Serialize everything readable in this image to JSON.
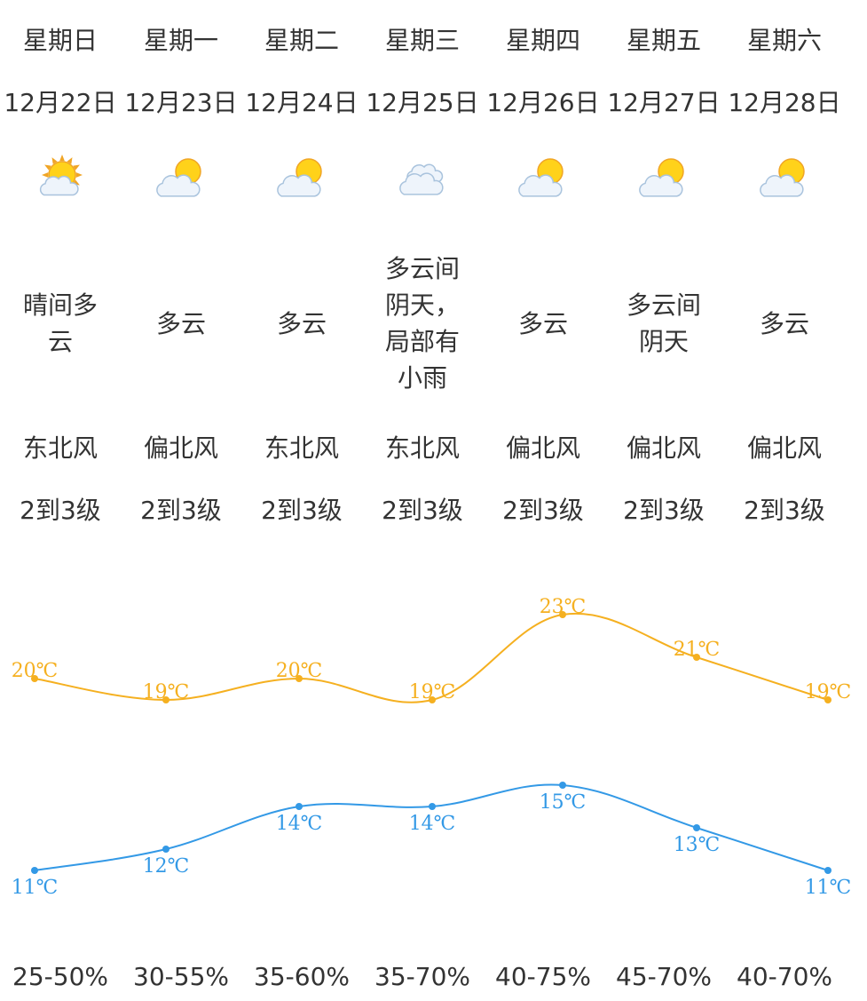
{
  "days": [
    {
      "weekday": "星期日",
      "date": "12月22日",
      "icon": "sunny-cloudy-icon",
      "desc": "晴间多云",
      "wind_dir": "东北风",
      "wind_level": "2到3级",
      "humidity": "25-50%"
    },
    {
      "weekday": "星期一",
      "date": "12月23日",
      "icon": "partly-cloudy-icon",
      "desc": "多云",
      "wind_dir": "偏北风",
      "wind_level": "2到3级",
      "humidity": "30-55%"
    },
    {
      "weekday": "星期二",
      "date": "12月24日",
      "icon": "partly-cloudy-icon",
      "desc": "多云",
      "wind_dir": "东北风",
      "wind_level": "2到3级",
      "humidity": "35-60%"
    },
    {
      "weekday": "星期三",
      "date": "12月25日",
      "icon": "overcast-cloud-icon",
      "desc": "多云间阴天，局部有小雨",
      "wind_dir": "东北风",
      "wind_level": "2到3级",
      "humidity": "35-70%"
    },
    {
      "weekday": "星期四",
      "date": "12月26日",
      "icon": "partly-cloudy-icon",
      "desc": "多云",
      "wind_dir": "偏北风",
      "wind_level": "2到3级",
      "humidity": "40-75%"
    },
    {
      "weekday": "星期五",
      "date": "12月27日",
      "icon": "partly-cloudy-icon",
      "desc": "多云间阴天",
      "wind_dir": "偏北风",
      "wind_level": "2到3级",
      "humidity": "45-70%"
    },
    {
      "weekday": "星期六",
      "date": "12月28日",
      "icon": "partly-cloudy-icon",
      "desc": "多云",
      "wind_dir": "偏北风",
      "wind_level": "2到3级",
      "humidity": "40-70%"
    }
  ],
  "chart_data": {
    "type": "line",
    "categories": [
      "12月22日",
      "12月23日",
      "12月24日",
      "12月25日",
      "12月26日",
      "12月27日",
      "12月28日"
    ],
    "series": [
      {
        "key": "high",
        "values": [
          20,
          19,
          20,
          19,
          23,
          21,
          19
        ],
        "color": "#f5b020"
      },
      {
        "key": "low",
        "values": [
          11,
          12,
          14,
          14,
          15,
          13,
          11
        ],
        "color": "#3399e6"
      }
    ],
    "unit": "℃",
    "grid": false
  }
}
